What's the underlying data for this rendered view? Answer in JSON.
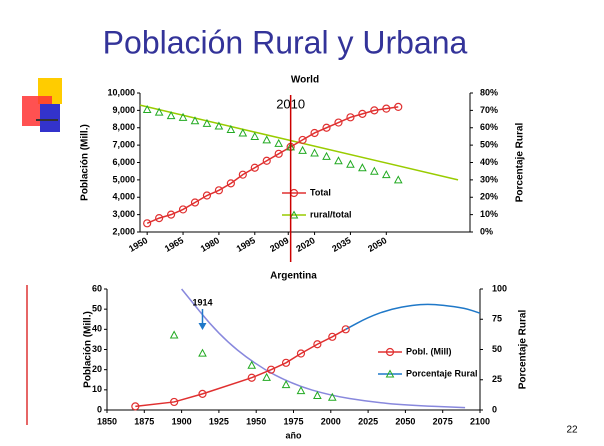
{
  "slide": {
    "title": "Población Rural y Urbana",
    "page_number": "22"
  },
  "chart_data": [
    {
      "type": "line",
      "title": "World",
      "y_label": "Población (Mill.)",
      "y2_label": "Porcentaje Rural",
      "xlim": [
        1947,
        2085
      ],
      "xticks": [
        1950,
        1965,
        1980,
        1995,
        2009,
        2020,
        2035,
        2050
      ],
      "ylim": [
        2000,
        10000
      ],
      "yticks": [
        {
          "value": 2000,
          "label": "2,000"
        },
        {
          "value": 3000,
          "label": "3,000"
        },
        {
          "value": 4000,
          "label": "4,000"
        },
        {
          "value": 5000,
          "label": "5,000"
        },
        {
          "value": 6000,
          "label": "6,000"
        },
        {
          "value": 7000,
          "label": "7,000"
        },
        {
          "value": 8000,
          "label": "8,000"
        },
        {
          "value": 9000,
          "label": "9,000"
        },
        {
          "value": 10000,
          "label": "10,000"
        }
      ],
      "y2lim": [
        0,
        80
      ],
      "y2ticks": [
        {
          "value": 0,
          "label": "0%"
        },
        {
          "value": 10,
          "label": "10%"
        },
        {
          "value": 20,
          "label": "20%"
        },
        {
          "value": 30,
          "label": "30%"
        },
        {
          "value": 40,
          "label": "40%"
        },
        {
          "value": 50,
          "label": "50%"
        },
        {
          "value": 60,
          "label": "60%"
        },
        {
          "value": 70,
          "label": "70%"
        },
        {
          "value": 80,
          "label": "80%"
        }
      ],
      "legend": "center",
      "series": [
        {
          "name": "Total",
          "color": "#e03030",
          "marker": "circle",
          "line": true,
          "x": [
            1950,
            1955,
            1960,
            1965,
            1970,
            1975,
            1980,
            1985,
            1990,
            1995,
            2000,
            2005,
            2010,
            2015,
            2020,
            2025,
            2030,
            2035,
            2040,
            2045,
            2050,
            2055
          ],
          "values": [
            2500,
            2800,
            3000,
            3300,
            3700,
            4100,
            4400,
            4800,
            5300,
            5700,
            6100,
            6500,
            6900,
            7300,
            7700,
            8000,
            8300,
            8600,
            8800,
            9000,
            9100,
            9200
          ]
        },
        {
          "name": "rural/total",
          "color": "#22aa22",
          "marker": "triangle",
          "line": false,
          "axis": "y2",
          "x": [
            1950,
            1955,
            1960,
            1965,
            1970,
            1975,
            1980,
            1985,
            1990,
            1995,
            2000,
            2005,
            2010,
            2015,
            2020,
            2025,
            2030,
            2035,
            2040,
            2045,
            2050,
            2055
          ],
          "values": [
            70.5,
            69,
            67,
            66,
            64,
            62.5,
            61,
            59,
            57,
            55,
            53,
            51,
            49,
            47,
            45.5,
            43.5,
            41,
            39,
            37,
            35,
            33,
            30
          ]
        }
      ],
      "curves": [
        {
          "color": "#99cc00",
          "axis": "y2",
          "x": [
            1947,
            2080
          ],
          "values": [
            73,
            30
          ]
        }
      ],
      "annotations": [
        {
          "x": 2010,
          "color": "#cc0000"
        }
      ]
    },
    {
      "type": "line",
      "title": "Argentina",
      "x_label": "año",
      "y_label": "Población (Mill.)",
      "y2_label": "Porcentaje Rural",
      "xlim": [
        1850,
        2100
      ],
      "xticks": [
        1850,
        1875,
        1900,
        1925,
        1950,
        1975,
        2000,
        2025,
        2050,
        2075,
        2100
      ],
      "ylim": [
        0,
        60
      ],
      "yticks": [
        0,
        10,
        20,
        30,
        40,
        50,
        60
      ],
      "y2lim": [
        0,
        100
      ],
      "y2ticks": [
        0,
        25,
        50,
        75,
        100
      ],
      "legend": "center-right",
      "series": [
        {
          "name": "Pobl. (Mill)",
          "color": "#e03030",
          "marker": "circle",
          "line": true,
          "x": [
            1869,
            1895,
            1914,
            1947,
            1960,
            1970,
            1980,
            1991,
            2001,
            2010
          ],
          "values": [
            1.8,
            4,
            8,
            16,
            20,
            23.4,
            28,
            32.6,
            36.3,
            40
          ]
        },
        {
          "name": "Porcentaje Rural",
          "color": "#22aa22",
          "marker": "triangle",
          "line": false,
          "axis": "y2",
          "x": [
            1895,
            1914,
            1947,
            1957,
            1970,
            1980,
            1991,
            2001
          ],
          "values": [
            62,
            47,
            37,
            27,
            21,
            16,
            12,
            10.5
          ]
        }
      ],
      "curves": [
        {
          "color": "#1f78c8",
          "x": [
            2010,
            2025,
            2040,
            2055,
            2065,
            2075,
            2090,
            2100
          ],
          "values": [
            40,
            46,
            50,
            52,
            52.5,
            52,
            50.5,
            48
          ]
        },
        {
          "color": "#8888dd",
          "axis": "y2",
          "x": [
            1900,
            1925,
            1950,
            1975,
            2000,
            2025,
            2050,
            2090
          ],
          "values": [
            100,
            62,
            37,
            21,
            12,
            7,
            4,
            2
          ]
        }
      ],
      "annotations": [
        {
          "x": 1914,
          "color": "#1f78c8"
        }
      ]
    }
  ]
}
